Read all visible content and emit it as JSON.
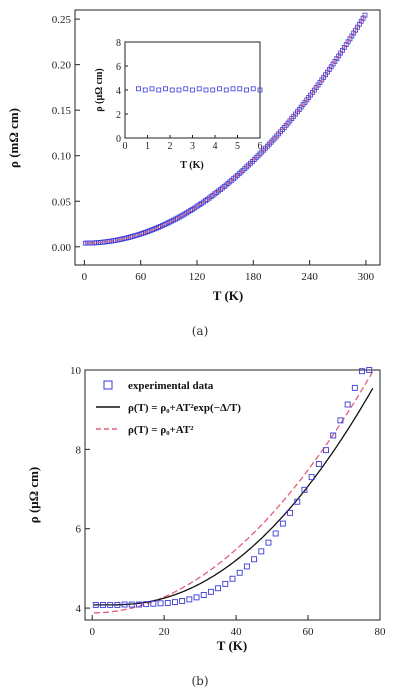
{
  "chart_data": [
    {
      "id": "a",
      "type": "scatter",
      "caption": "(a)",
      "xlabel": "T (K)",
      "ylabel": "ρ (mΩ cm)",
      "xlim": [
        -10,
        315
      ],
      "ylim": [
        -0.02,
        0.26
      ],
      "xticks": [
        0,
        60,
        120,
        180,
        240,
        300
      ],
      "xtick_labels": [
        "0",
        "60",
        "120",
        "180",
        "240",
        "300"
      ],
      "yticks": [
        0.0,
        0.05,
        0.1,
        0.15,
        0.2,
        0.25
      ],
      "ytick_labels": [
        "0.00",
        "0.05",
        "0.10",
        "0.15",
        "0.20",
        "0.25"
      ],
      "series": [
        {
          "marker": "open-square",
          "color": "#3a3ad6",
          "x_range": [
            1,
            300
          ],
          "rho0": 0.004,
          "A": 2.8e-06
        },
        {
          "marker": "line",
          "color": "#e0607a",
          "x_range": [
            1,
            300
          ],
          "rho0": 0.004,
          "A": 2.8e-06
        }
      ],
      "inset": {
        "xlabel": "T (K)",
        "ylabel": "ρ (μΩ cm)",
        "xlim": [
          0,
          6
        ],
        "ylim": [
          0,
          8
        ],
        "xticks": [
          0,
          1,
          2,
          3,
          4,
          5,
          6
        ],
        "xtick_labels": [
          "0",
          "1",
          "2",
          "3",
          "4",
          "5",
          "6"
        ],
        "yticks": [
          0,
          2,
          4,
          6,
          8
        ],
        "ytick_labels": [
          "0",
          "2",
          "4",
          "6",
          "8"
        ],
        "x": [
          0.6,
          0.9,
          1.2,
          1.5,
          1.8,
          2.1,
          2.4,
          2.7,
          3.0,
          3.3,
          3.6,
          3.9,
          4.2,
          4.5,
          4.8,
          5.1,
          5.4,
          5.7,
          6.0
        ],
        "y": [
          4.1,
          4.0,
          4.1,
          4.0,
          4.1,
          4.0,
          4.0,
          4.1,
          4.0,
          4.1,
          4.0,
          4.0,
          4.1,
          4.0,
          4.1,
          4.1,
          4.0,
          4.1,
          4.0
        ]
      }
    },
    {
      "id": "b",
      "type": "scatter",
      "caption": "(b)",
      "xlabel": "T (K)",
      "ylabel": "ρ (μΩ cm)",
      "xlim": [
        -2,
        80
      ],
      "ylim": [
        3.7,
        10
      ],
      "xticks": [
        0,
        20,
        40,
        60,
        80
      ],
      "xtick_labels": [
        "0",
        "20",
        "40",
        "60",
        "80"
      ],
      "yticks": [
        4,
        6,
        8,
        10
      ],
      "ytick_labels": [
        "4",
        "6",
        "8",
        "10"
      ],
      "legend": {
        "position": "top-left",
        "entries": [
          {
            "label": "experimental data",
            "style": "open-square",
            "color": "#3a3ad6"
          },
          {
            "label": "ρ(T) = ρ₀+AT²exp(−Δ/T)",
            "style": "solid",
            "color": "#111111"
          },
          {
            "label": "ρ(T) = ρ₀+AT²",
            "style": "dashed",
            "color": "#e0607a"
          }
        ]
      },
      "x": [
        1,
        3,
        5,
        7,
        9,
        11,
        13,
        15,
        17,
        19,
        21,
        23,
        25,
        27,
        29,
        31,
        33,
        35,
        37,
        39,
        41,
        43,
        45,
        47,
        49,
        51,
        53,
        55,
        57,
        59,
        61,
        63,
        65,
        67,
        69,
        71,
        73,
        75,
        77
      ],
      "y": [
        4.08,
        4.08,
        4.08,
        4.08,
        4.09,
        4.09,
        4.09,
        4.1,
        4.11,
        4.12,
        4.13,
        4.15,
        4.18,
        4.22,
        4.27,
        4.33,
        4.41,
        4.5,
        4.61,
        4.74,
        4.89,
        5.05,
        5.23,
        5.43,
        5.65,
        5.88,
        6.13,
        6.4,
        6.68,
        6.98,
        7.3,
        7.63,
        7.98,
        8.35,
        8.73,
        9.13,
        9.55,
        9.97,
        10.0
      ],
      "fit_exp": {
        "rho0": 4.08,
        "A": 0.00116,
        "delta": 20
      },
      "fit_t2": {
        "rho0": 3.88,
        "A": 0.001
      }
    }
  ]
}
